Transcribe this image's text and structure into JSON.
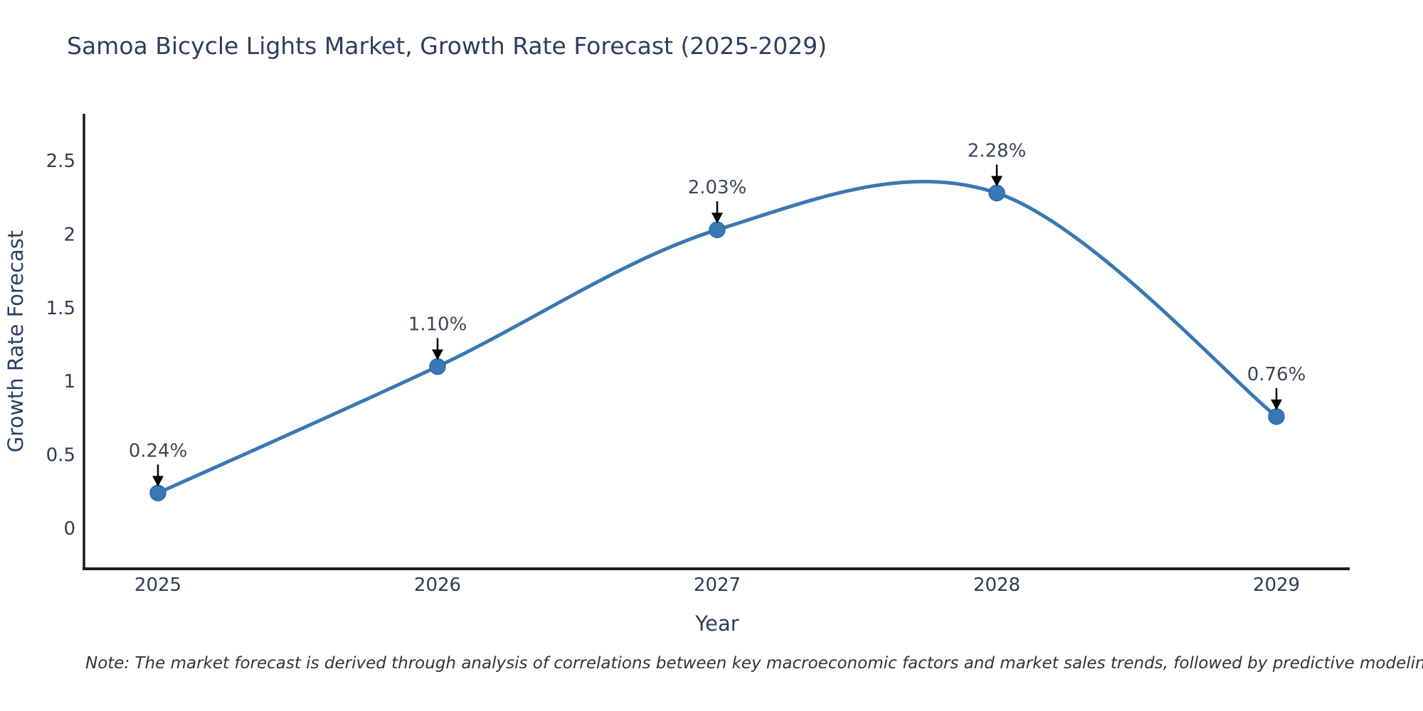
{
  "title": "Samoa Bicycle Lights Market, Growth Rate Forecast (2025-2029)",
  "note": "Note: The market forecast is derived through analysis of correlations between key macroeconomic factors and market sales trends, followed by predictive modeling to project future sales",
  "chart_data": {
    "type": "line",
    "line_shape": "spline",
    "title": "Samoa Bicycle Lights Market, Growth Rate Forecast (2025-2029)",
    "xlabel": "Year",
    "ylabel": "Growth Rate Forecast",
    "categories": [
      "2025",
      "2026",
      "2027",
      "2028",
      "2029"
    ],
    "series": [
      {
        "name": "Growth Rate Forecast",
        "values": [
          0.24,
          1.1,
          2.03,
          2.28,
          0.76
        ]
      }
    ],
    "point_labels": [
      "0.24%",
      "1.10%",
      "2.03%",
      "2.28%",
      "0.76%"
    ],
    "yticks": [
      "0",
      "0.5",
      "1",
      "1.5",
      "2",
      "2.5"
    ],
    "ytick_values": [
      0,
      0.5,
      1,
      1.5,
      2,
      2.5
    ],
    "ylim": [
      -0.28,
      2.84
    ],
    "grid": false,
    "legend": "none",
    "markers": true,
    "annotations_arrows": true,
    "colors": {
      "line": "#3a78b3",
      "marker": "#3878b4",
      "marker_edge": "#2e6ba8",
      "axis": "#1c1c1c",
      "arrow": "#000000",
      "title_text": "#2a3f5f",
      "tick_text": "#2f3b4f"
    }
  }
}
